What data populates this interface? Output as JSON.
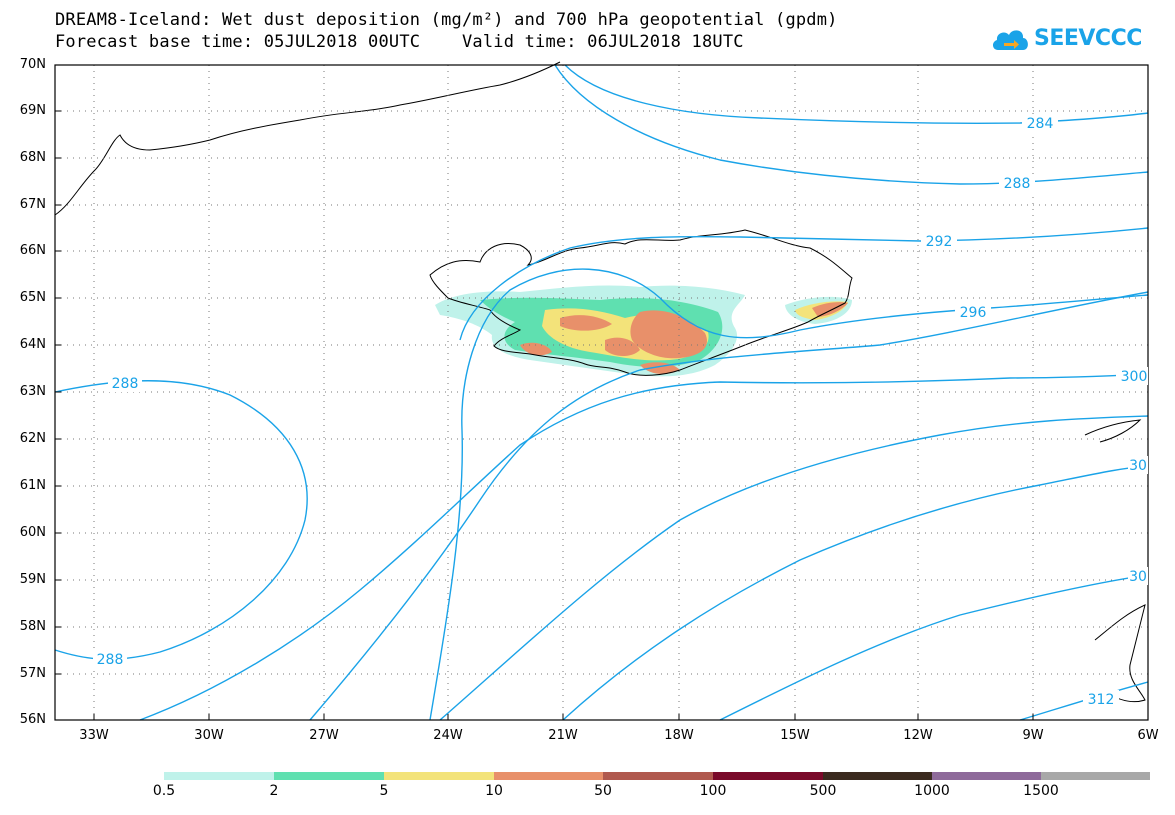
{
  "title": {
    "line1": "DREAM8-Iceland: Wet dust deposition (mg/m²) and 700 hPa geopotential (gpdm)",
    "line2": "Forecast base time: 05JUL2018 00UTC    Valid time: 06JUL2018 18UTC"
  },
  "logo": {
    "text": "SEEVCCC",
    "icon": "cloud-arrow-icon",
    "color": "#1aa3e8"
  },
  "map": {
    "lat_labels": [
      "70N",
      "69N",
      "68N",
      "67N",
      "66N",
      "65N",
      "64N",
      "63N",
      "62N",
      "61N",
      "60N",
      "59N",
      "58N",
      "57N",
      "56N"
    ],
    "lon_labels": [
      "33W",
      "30W",
      "27W",
      "24W",
      "21W",
      "18W",
      "15W",
      "12W",
      "9W",
      "6W"
    ],
    "contour_color": "#1aa3e8",
    "contour_labels": [
      "284",
      "288",
      "292",
      "296",
      "300",
      "30",
      "30",
      "312",
      "288",
      "288"
    ]
  },
  "legend": {
    "labels": [
      "0.5",
      "2",
      "5",
      "10",
      "50",
      "100",
      "500",
      "1000",
      "1500"
    ],
    "colors": [
      "#bff2ea",
      "#5fe0b0",
      "#f3e37a",
      "#e8906a",
      "#b0594e",
      "#7a0a2a",
      "#3b2a1f",
      "#8e6a9a",
      "#a8a8a8"
    ]
  }
}
